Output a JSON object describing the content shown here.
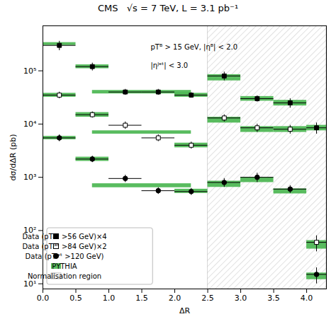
{
  "chart_data": {
    "type": "errorbar",
    "title": "CMS   √s = 7 TeV, L = 3.1 pb⁻¹",
    "xlabel": "ΔR",
    "ylabel": "dσ/dΔR (pb)",
    "annotations": [
      "pTᴮ > 15 GeV, |ηᴮ| < 2.0",
      "|ηᴶᵉᵗ| < 3.0"
    ],
    "xlim": [
      0,
      4.3
    ],
    "xticks": [
      {
        "value": 0,
        "label": "0.0"
      },
      0.5,
      {
        "value": 1,
        "label": "1.0"
      },
      1.5,
      {
        "value": 2,
        "label": "2.0"
      },
      2.5,
      {
        "value": 3,
        "label": "3.0"
      },
      3.5,
      {
        "value": 4,
        "label": "4.0"
      }
    ],
    "ylim": [
      8,
      700000
    ],
    "yticks": [
      {
        "value": 10,
        "label": "10¹"
      },
      {
        "value": 100,
        "label": "10²"
      },
      {
        "value": 1000,
        "label": "10³"
      },
      {
        "value": 10000,
        "label": "10⁴"
      },
      {
        "value": 100000,
        "label": "10⁵"
      }
    ],
    "log": "y",
    "grid": false,
    "legend": "lower left",
    "series": [
      {
        "name": "Data (pTᴶᵉᵗ >56 GeV)×4",
        "type": "errorbar",
        "marker": "square",
        "color": "black",
        "x": [
          0.25,
          0.75,
          1.25,
          1.75,
          2.25,
          2.75,
          3.25,
          3.75,
          4.15
        ],
        "values": [
          300000,
          120000,
          40000,
          40000,
          35000,
          80000,
          30000,
          25000,
          8500
        ],
        "xerr": [
          0.25,
          0.25,
          0.25,
          0.25,
          0.25,
          0.25,
          0.25,
          0.25,
          0.15
        ],
        "yerr_lo": [
          60000,
          20000,
          5000,
          5000,
          4000,
          15000,
          4000,
          5000,
          2000
        ],
        "yerr_hi": [
          60000,
          20000,
          5000,
          5000,
          4000,
          15000,
          4000,
          5000,
          2000
        ]
      },
      {
        "name": "Data (pTᴶᵉᵗ >84 GeV)×2",
        "type": "errorbar",
        "marker": "open_square",
        "color": "black",
        "x": [
          0.25,
          0.75,
          1.25,
          1.75,
          2.25,
          2.75,
          3.25,
          3.75,
          4.15
        ],
        "values": [
          35000,
          15000,
          9500,
          5500,
          4000,
          13000,
          8500,
          8000,
          60
        ],
        "xerr": [
          0.25,
          0.25,
          0.25,
          0.25,
          0.25,
          0.25,
          0.25,
          0.25,
          0.15
        ],
        "yerr_lo": [
          5000,
          2000,
          1500,
          800,
          600,
          2000,
          1500,
          1500,
          20
        ],
        "yerr_hi": [
          5000,
          2000,
          1500,
          800,
          600,
          2000,
          1500,
          1500,
          20
        ]
      },
      {
        "name": "Data (pTᴶᵉᵗ >120 GeV)",
        "type": "errorbar",
        "marker": "circle",
        "color": "black",
        "x": [
          0.25,
          0.75,
          1.25,
          1.75,
          2.25,
          2.75,
          3.25,
          3.75,
          4.15
        ],
        "values": [
          5500,
          2200,
          950,
          560,
          540,
          800,
          1000,
          600,
          15
        ],
        "xerr": [
          0.25,
          0.25,
          0.25,
          0.25,
          0.25,
          0.25,
          0.25,
          0.25,
          0.15
        ],
        "yerr_lo": [
          800,
          300,
          150,
          80,
          80,
          150,
          200,
          100,
          5
        ],
        "yerr_hi": [
          800,
          300,
          150,
          80,
          80,
          150,
          200,
          100,
          5
        ]
      },
      {
        "name": "PYTHIA",
        "type": "band",
        "color": "#3cb043",
        "bands": [
          {
            "x": [
              0.25,
              0.75,
              1.5,
              2.25,
              2.75,
              3.25,
              3.75,
              4.15
            ],
            "xlo": [
              0.25,
              0.25,
              0.75,
              0.25,
              0.25,
              0.25,
              0.25,
              0.15
            ],
            "xhi": [
              0.25,
              0.25,
              0.75,
              0.25,
              0.25,
              0.25,
              0.25,
              0.15
            ],
            "values": [
              320000,
              120000,
              40000,
              35000,
              75000,
              30000,
              25000,
              8500
            ],
            "yerr": [
              20000,
              10000,
              3000,
              3000,
              10000,
              3000,
              3000,
              1000
            ]
          },
          {
            "x": [
              0.25,
              0.75,
              1.5,
              2.25,
              2.75,
              3.25,
              3.75,
              4.15
            ],
            "xlo": [
              0.25,
              0.25,
              0.75,
              0.25,
              0.25,
              0.25,
              0.25,
              0.15
            ],
            "xhi": [
              0.25,
              0.25,
              0.75,
              0.25,
              0.25,
              0.25,
              0.25,
              0.15
            ],
            "values": [
              35000,
              15000,
              7000,
              4000,
              12000,
              8000,
              8000,
              55
            ],
            "yerr": [
              3000,
              1500,
              500,
              400,
              1500,
              1000,
              1000,
              10
            ]
          },
          {
            "x": [
              0.25,
              0.75,
              1.5,
              2.25,
              2.75,
              3.25,
              3.75,
              4.15
            ],
            "xlo": [
              0.25,
              0.25,
              0.75,
              0.25,
              0.25,
              0.25,
              0.25,
              0.15
            ],
            "xhi": [
              0.25,
              0.25,
              0.75,
              0.25,
              0.25,
              0.25,
              0.25,
              0.15
            ],
            "values": [
              5500,
              2200,
              700,
              550,
              750,
              900,
              550,
              14
            ],
            "yerr": [
              400,
              200,
              60,
              50,
              100,
              100,
              60,
              2
            ]
          }
        ]
      }
    ],
    "norm_region": {
      "name": "Normalisation region",
      "x": [
        2.5,
        4.3
      ],
      "color": "gray"
    }
  }
}
